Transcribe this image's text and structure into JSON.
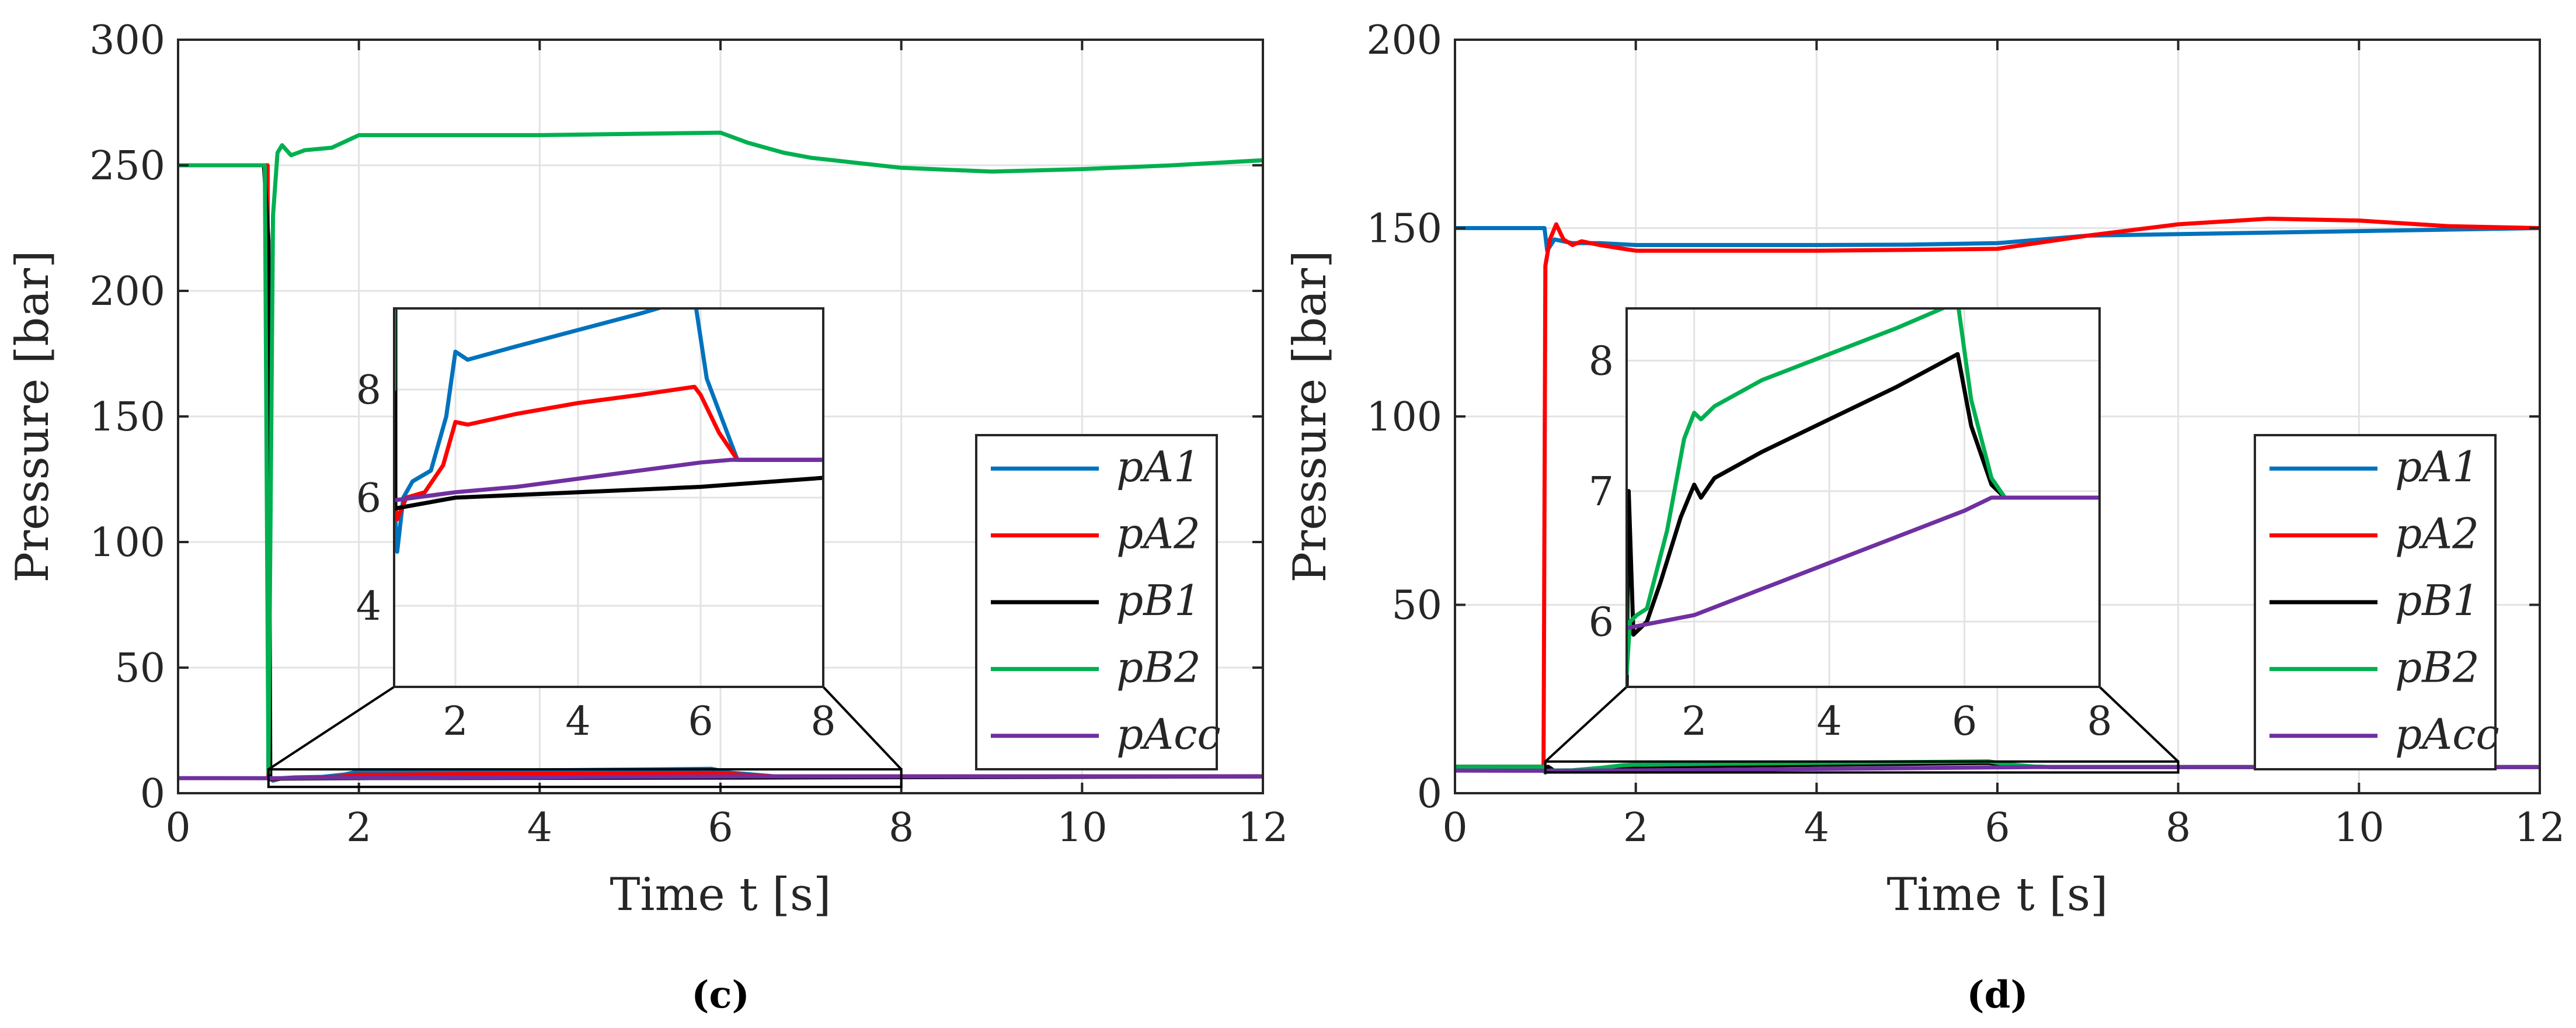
{
  "chart_data": [
    {
      "type": "line",
      "panel": "c",
      "caption": "(c)",
      "xlabel": "Time t [s]",
      "ylabel": "Pressure [bar]",
      "xlim": [
        0,
        12
      ],
      "ylim": [
        0,
        300
      ],
      "xticks": [
        0,
        2,
        4,
        6,
        8,
        10,
        12
      ],
      "yticks": [
        0,
        50,
        100,
        150,
        200,
        250,
        300
      ],
      "grid": true,
      "legend_position": "right-middle",
      "legend": [
        "pA1",
        "pA2",
        "pB1",
        "pB2",
        "pAcc"
      ],
      "series": [
        {
          "name": "pA1",
          "color": "#0072BD",
          "points": [
            [
              0,
              250
            ],
            [
              0.99,
              250
            ],
            [
              1.0,
              6
            ],
            [
              1.05,
              5
            ],
            [
              1.15,
              6
            ],
            [
              1.3,
              6.3
            ],
            [
              1.6,
              6.5
            ],
            [
              1.85,
              7.5
            ],
            [
              2.0,
              8.7
            ],
            [
              2.2,
              8.55
            ],
            [
              3,
              8.8
            ],
            [
              4,
              9.1
            ],
            [
              5,
              9.4
            ],
            [
              5.9,
              9.7
            ],
            [
              6.1,
              8.2
            ],
            [
              6.4,
              7.3
            ],
            [
              6.6,
              6.7
            ],
            [
              7,
              6.7
            ],
            [
              12,
              6.7
            ]
          ]
        },
        {
          "name": "pA2",
          "color": "#FF0000",
          "points": [
            [
              0,
              250
            ],
            [
              0.99,
              250
            ],
            [
              1.0,
              6
            ],
            [
              1.05,
              5.6
            ],
            [
              1.2,
              6
            ],
            [
              1.5,
              6.1
            ],
            [
              1.8,
              6.6
            ],
            [
              2.0,
              7.4
            ],
            [
              2.2,
              7.35
            ],
            [
              3,
              7.55
            ],
            [
              4,
              7.75
            ],
            [
              5,
              7.9
            ],
            [
              5.9,
              8.05
            ],
            [
              6.0,
              7.9
            ],
            [
              6.3,
              7.2
            ],
            [
              6.6,
              6.7
            ],
            [
              7,
              6.7
            ],
            [
              12,
              6.7
            ]
          ]
        },
        {
          "name": "pB1",
          "color": "#000000",
          "points": [
            [
              0,
              250
            ],
            [
              0.95,
              250
            ],
            [
              1.0,
              220
            ],
            [
              1.02,
              5.8
            ],
            [
              2,
              6
            ],
            [
              6,
              6.2
            ],
            [
              12,
              6.7
            ]
          ]
        },
        {
          "name": "pB2",
          "color": "#00B050",
          "points": [
            [
              0,
              250
            ],
            [
              0.96,
              250
            ],
            [
              1.0,
              8
            ],
            [
              1.05,
              230
            ],
            [
              1.1,
              255
            ],
            [
              1.15,
              258
            ],
            [
              1.25,
              254
            ],
            [
              1.4,
              256
            ],
            [
              1.7,
              257
            ],
            [
              2.0,
              262
            ],
            [
              3,
              262
            ],
            [
              4,
              262
            ],
            [
              5,
              262.5
            ],
            [
              6,
              263
            ],
            [
              6.3,
              259
            ],
            [
              6.7,
              255
            ],
            [
              7,
              253
            ],
            [
              8,
              249
            ],
            [
              9,
              247.5
            ],
            [
              10,
              248.5
            ],
            [
              11,
              250
            ],
            [
              12,
              252
            ]
          ]
        },
        {
          "name": "pAcc",
          "color": "#7030A0",
          "points": [
            [
              0,
              6
            ],
            [
              1,
              5.95
            ],
            [
              2,
              6.1
            ],
            [
              3,
              6.2
            ],
            [
              4,
              6.35
            ],
            [
              5,
              6.5
            ],
            [
              6,
              6.65
            ],
            [
              6.5,
              6.7
            ],
            [
              12,
              6.7
            ]
          ]
        }
      ],
      "inset": {
        "xlim": [
          1,
          8
        ],
        "ylim": [
          2.5,
          9.5
        ],
        "xticks": [
          2,
          4,
          6,
          8
        ],
        "yticks": [
          4,
          6,
          8
        ],
        "source_box": {
          "x": [
            1,
            8
          ],
          "y": [
            2.5,
            9.5
          ]
        }
      }
    },
    {
      "type": "line",
      "panel": "d",
      "caption": "(d)",
      "xlabel": "Time t [s]",
      "ylabel": "Pressure [bar]",
      "xlim": [
        0,
        12
      ],
      "ylim": [
        0,
        200
      ],
      "xticks": [
        0,
        2,
        4,
        6,
        8,
        10,
        12
      ],
      "yticks": [
        0,
        50,
        100,
        150,
        200
      ],
      "grid": true,
      "legend_position": "right-middle",
      "legend": [
        "pA1",
        "pA2",
        "pB1",
        "pB2",
        "pAcc"
      ],
      "series": [
        {
          "name": "pA1",
          "color": "#0072BD",
          "points": [
            [
              0,
              150
            ],
            [
              0.99,
              150
            ],
            [
              1.02,
              144
            ],
            [
              1.1,
              147
            ],
            [
              1.3,
              146
            ],
            [
              1.6,
              146
            ],
            [
              2,
              145.5
            ],
            [
              3,
              145.5
            ],
            [
              4,
              145.5
            ],
            [
              5,
              145.6
            ],
            [
              6,
              146
            ],
            [
              6.5,
              147
            ],
            [
              7,
              148
            ],
            [
              12,
              150
            ]
          ]
        },
        {
          "name": "pA2",
          "color": "#FF0000",
          "points": [
            [
              0,
              7
            ],
            [
              0.98,
              7
            ],
            [
              1.0,
              140
            ],
            [
              1.05,
              147
            ],
            [
              1.12,
              151
            ],
            [
              1.2,
              147
            ],
            [
              1.3,
              145.5
            ],
            [
              1.4,
              146.5
            ],
            [
              1.6,
              145.5
            ],
            [
              2,
              144
            ],
            [
              3,
              144
            ],
            [
              4,
              144
            ],
            [
              5,
              144.2
            ],
            [
              6,
              144.5
            ],
            [
              7,
              148
            ],
            [
              8,
              151
            ],
            [
              9,
              152.5
            ],
            [
              10,
              152
            ],
            [
              11,
              150.5
            ],
            [
              12,
              150
            ]
          ]
        },
        {
          "name": "pB1",
          "color": "#000000",
          "points": [
            [
              0,
              7
            ],
            [
              0.98,
              7
            ],
            [
              1.0,
              5.5
            ],
            [
              1.03,
              7
            ],
            [
              1.1,
              5.9
            ],
            [
              1.3,
              6.0
            ],
            [
              1.5,
              6.3
            ],
            [
              1.8,
              6.8
            ],
            [
              2.0,
              7.05
            ],
            [
              2.1,
              6.95
            ],
            [
              2.3,
              7.1
            ],
            [
              3,
              7.3
            ],
            [
              4,
              7.55
            ],
            [
              5,
              7.8
            ],
            [
              5.9,
              8.05
            ],
            [
              6.1,
              7.5
            ],
            [
              6.4,
              7.05
            ],
            [
              6.6,
              6.95
            ],
            [
              7,
              6.95
            ],
            [
              12,
              6.95
            ]
          ]
        },
        {
          "name": "pB2",
          "color": "#00B050",
          "points": [
            [
              0,
              7
            ],
            [
              0.98,
              7
            ],
            [
              1.0,
              5.6
            ],
            [
              1.05,
              6
            ],
            [
              1.15,
              6.05
            ],
            [
              1.3,
              6.1
            ],
            [
              1.6,
              6.7
            ],
            [
              1.85,
              7.4
            ],
            [
              2.0,
              7.6
            ],
            [
              2.1,
              7.55
            ],
            [
              2.3,
              7.65
            ],
            [
              3,
              7.85
            ],
            [
              4,
              8.05
            ],
            [
              5,
              8.25
            ],
            [
              5.9,
              8.45
            ],
            [
              6.1,
              7.7
            ],
            [
              6.4,
              7.1
            ],
            [
              6.6,
              6.95
            ],
            [
              7,
              6.95
            ],
            [
              12,
              6.95
            ]
          ]
        },
        {
          "name": "pAcc",
          "color": "#7030A0",
          "points": [
            [
              0,
              6
            ],
            [
              1,
              5.95
            ],
            [
              2,
              6.05
            ],
            [
              3,
              6.25
            ],
            [
              4,
              6.45
            ],
            [
              5,
              6.65
            ],
            [
              6,
              6.85
            ],
            [
              6.4,
              6.95
            ],
            [
              12,
              6.95
            ]
          ]
        }
      ],
      "inset": {
        "xlim": [
          1,
          8
        ],
        "ylim": [
          5.5,
          8.4
        ],
        "xticks": [
          2,
          4,
          6,
          8
        ],
        "yticks": [
          6,
          7,
          8
        ],
        "source_box": {
          "x": [
            1,
            8
          ],
          "y": [
            5.5,
            8.4
          ]
        }
      }
    }
  ]
}
